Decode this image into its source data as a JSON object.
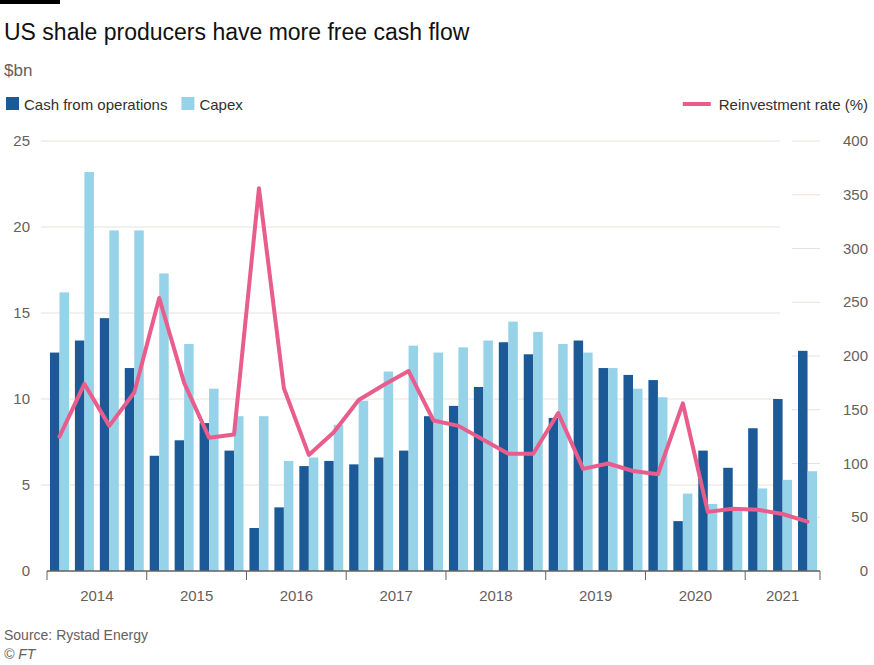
{
  "chart_data": {
    "type": "bar",
    "title": "US shale producers have more free cash flow",
    "subtitle": "$bn",
    "source": "Source: Rystad Energy",
    "credit": "© FT",
    "categories": [
      "2014",
      null,
      null,
      null,
      "2015",
      null,
      null,
      null,
      "2016",
      null,
      null,
      null,
      "2017",
      null,
      null,
      null,
      "2018",
      null,
      null,
      null,
      "2019",
      null,
      null,
      null,
      "2020",
      null,
      null,
      null,
      "2021",
      null,
      null
    ],
    "series": [
      {
        "name": "Cash from operations",
        "type": "bar",
        "color": "#1b5a96",
        "values": [
          12.7,
          13.4,
          14.7,
          11.8,
          6.7,
          7.6,
          8.6,
          7.0,
          2.5,
          3.7,
          6.1,
          6.4,
          6.2,
          6.6,
          7.0,
          9.0,
          9.6,
          10.7,
          13.3,
          12.6,
          8.9,
          13.4,
          11.8,
          11.4,
          11.1,
          2.9,
          7.0,
          6.0,
          8.3,
          10.0,
          12.8
        ]
      },
      {
        "name": "Capex",
        "type": "bar",
        "color": "#96d3e8",
        "values": [
          16.2,
          23.2,
          19.8,
          19.8,
          17.3,
          13.2,
          10.6,
          9.0,
          9.0,
          6.4,
          6.6,
          8.5,
          9.9,
          11.6,
          13.1,
          12.7,
          13.0,
          13.4,
          14.5,
          13.9,
          13.2,
          12.7,
          11.8,
          10.6,
          10.1,
          4.5,
          3.9,
          3.5,
          4.8,
          5.3,
          5.8
        ]
      },
      {
        "name": "Reinvestment rate (%)",
        "type": "line",
        "axis": "y2",
        "color": "#e95d8c",
        "values": [
          125,
          174,
          135,
          166,
          254,
          175,
          124,
          127,
          356,
          170,
          108,
          129,
          159,
          173,
          186,
          140,
          135,
          122,
          109,
          109,
          147,
          95,
          100,
          93,
          90,
          156,
          55,
          58,
          57,
          53,
          46
        ]
      }
    ],
    "ylim": [
      0,
      25
    ],
    "yticks": [
      0,
      5,
      10,
      15,
      20,
      25
    ],
    "y2lim": [
      0,
      400
    ],
    "y2ticks": [
      0,
      50,
      100,
      150,
      200,
      250,
      300,
      350,
      400
    ],
    "grid": true,
    "legend": "top"
  }
}
